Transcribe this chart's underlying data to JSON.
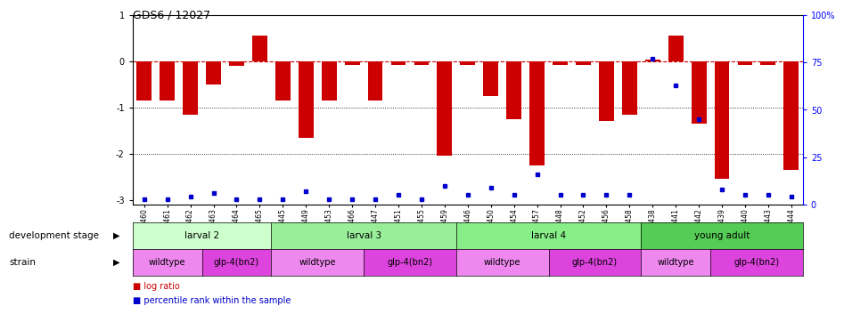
{
  "title": "GDS6 / 12027",
  "samples": [
    "GSM460",
    "GSM461",
    "GSM462",
    "GSM463",
    "GSM464",
    "GSM465",
    "GSM445",
    "GSM449",
    "GSM453",
    "GSM466",
    "GSM447",
    "GSM451",
    "GSM455",
    "GSM459",
    "GSM446",
    "GSM450",
    "GSM454",
    "GSM457",
    "GSM448",
    "GSM452",
    "GSM456",
    "GSM458",
    "GSM438",
    "GSM441",
    "GSM442",
    "GSM439",
    "GSM440",
    "GSM443",
    "GSM444"
  ],
  "log_ratio": [
    -0.85,
    -0.85,
    -1.15,
    -0.5,
    -0.1,
    0.55,
    -0.85,
    -1.65,
    -0.85,
    -0.07,
    -0.85,
    -0.07,
    -0.07,
    -2.05,
    -0.07,
    -0.75,
    -1.25,
    -2.25,
    -0.07,
    -0.07,
    -1.3,
    -1.15,
    0.03,
    0.55,
    -1.35,
    -2.55,
    -0.07,
    -0.07,
    -2.35
  ],
  "percentile": [
    3,
    3,
    4,
    6,
    3,
    3,
    3,
    7,
    3,
    3,
    3,
    5,
    3,
    10,
    5,
    9,
    5,
    16,
    5,
    5,
    5,
    5,
    77,
    63,
    45,
    8,
    5,
    5,
    4
  ],
  "bar_color": "#cc0000",
  "dot_color": "#0000cc",
  "dashed_color": "#cc0000",
  "ylim_left": [
    -3.1,
    1.0
  ],
  "ylim_right": [
    0,
    100
  ],
  "yticks_left": [
    1,
    0,
    -1,
    -2,
    -3
  ],
  "yticks_right": [
    0,
    25,
    50,
    75,
    100
  ],
  "right_tick_labels": [
    "0",
    "25",
    "50",
    "75",
    "100%"
  ],
  "development_stages": [
    {
      "label": "larval 2",
      "start": 0,
      "end": 6,
      "color": "#ccffcc"
    },
    {
      "label": "larval 3",
      "start": 6,
      "end": 14,
      "color": "#99ee99"
    },
    {
      "label": "larval 4",
      "start": 14,
      "end": 22,
      "color": "#88ee88"
    },
    {
      "label": "young adult",
      "start": 22,
      "end": 29,
      "color": "#55cc55"
    }
  ],
  "strains": [
    {
      "label": "wildtype",
      "start": 0,
      "end": 3,
      "color": "#ee88ee"
    },
    {
      "label": "glp-4(bn2)",
      "start": 3,
      "end": 6,
      "color": "#dd44dd"
    },
    {
      "label": "wildtype",
      "start": 6,
      "end": 10,
      "color": "#ee88ee"
    },
    {
      "label": "glp-4(bn2)",
      "start": 10,
      "end": 14,
      "color": "#dd44dd"
    },
    {
      "label": "wildtype",
      "start": 14,
      "end": 18,
      "color": "#ee88ee"
    },
    {
      "label": "glp-4(bn2)",
      "start": 18,
      "end": 22,
      "color": "#dd44dd"
    },
    {
      "label": "wildtype",
      "start": 22,
      "end": 25,
      "color": "#ee88ee"
    },
    {
      "label": "glp-4(bn2)",
      "start": 25,
      "end": 29,
      "color": "#dd44dd"
    }
  ],
  "dev_stage_label": "development stage",
  "strain_label": "strain",
  "legend_log_label": "log ratio",
  "legend_pct_label": "percentile rank within the sample",
  "legend_log_color": "#cc0000",
  "legend_pct_color": "#0000cc"
}
